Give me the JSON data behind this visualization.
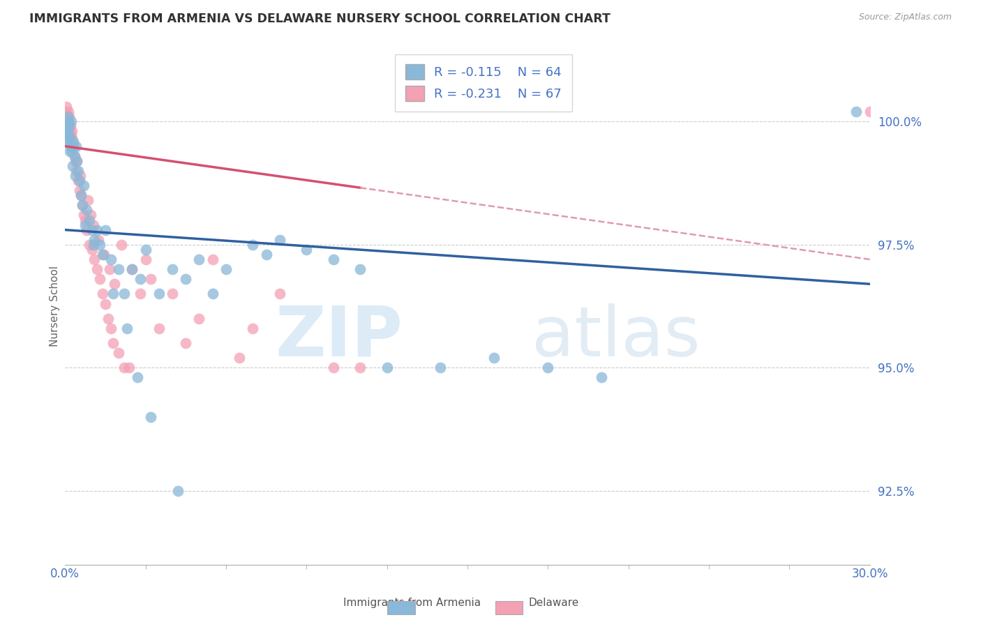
{
  "title": "IMMIGRANTS FROM ARMENIA VS DELAWARE NURSERY SCHOOL CORRELATION CHART",
  "source_text": "Source: ZipAtlas.com",
  "ylabel": "Nursery School",
  "legend_label_1": "Immigrants from Armenia",
  "legend_label_2": "Delaware",
  "R1": -0.115,
  "N1": 64,
  "R2": -0.231,
  "N2": 67,
  "color1": "#89b8d8",
  "color2": "#f4a0b5",
  "trend1_color": "#3060a0",
  "trend2_color": "#d45070",
  "dashed_color": "#e09aae",
  "x_min": 0.0,
  "x_max": 30.0,
  "y_min": 91.0,
  "y_max": 101.5,
  "yticks": [
    92.5,
    95.0,
    97.5,
    100.0
  ],
  "ytick_labels": [
    "92.5%",
    "95.0%",
    "97.5%",
    "100.0%"
  ],
  "xtick_labels": [
    "0.0%",
    "30.0%"
  ],
  "watermark_zip": "ZIP",
  "watermark_atlas": "atlas",
  "background_color": "#ffffff",
  "trend1_x0": 0.0,
  "trend1_y0": 97.8,
  "trend1_x1": 30.0,
  "trend1_y1": 96.7,
  "trend2_x0": 0.0,
  "trend2_y0": 99.5,
  "trend2_x1": 30.0,
  "trend2_y1": 97.2,
  "trend2_solid_end": 11.0,
  "scatter1_x": [
    0.05,
    0.08,
    0.1,
    0.12,
    0.15,
    0.18,
    0.2,
    0.22,
    0.25,
    0.3,
    0.35,
    0.4,
    0.45,
    0.5,
    0.55,
    0.6,
    0.7,
    0.8,
    0.9,
    1.0,
    1.1,
    1.2,
    1.3,
    1.5,
    1.7,
    2.0,
    2.2,
    2.5,
    2.8,
    3.0,
    3.5,
    4.0,
    4.5,
    5.0,
    5.5,
    6.0,
    7.0,
    7.5,
    8.0,
    9.0,
    10.0,
    11.0,
    12.0,
    14.0,
    16.0,
    18.0,
    20.0,
    29.5,
    0.06,
    0.09,
    0.11,
    0.14,
    0.17,
    0.28,
    0.38,
    0.65,
    0.75,
    1.05,
    1.4,
    1.8,
    2.3,
    2.7,
    3.2,
    4.2
  ],
  "scatter1_y": [
    99.8,
    99.6,
    100.1,
    100.0,
    99.9,
    99.7,
    99.5,
    100.0,
    99.4,
    99.6,
    99.3,
    99.5,
    99.2,
    99.0,
    98.8,
    98.5,
    98.7,
    98.2,
    98.0,
    97.8,
    97.6,
    97.8,
    97.5,
    97.8,
    97.2,
    97.0,
    96.5,
    97.0,
    96.8,
    97.4,
    96.5,
    97.0,
    96.8,
    97.2,
    96.5,
    97.0,
    97.5,
    97.3,
    97.6,
    97.4,
    97.2,
    97.0,
    95.0,
    95.0,
    95.2,
    95.0,
    94.8,
    100.2,
    99.9,
    99.8,
    99.7,
    99.6,
    99.4,
    99.1,
    98.9,
    98.3,
    97.9,
    97.5,
    97.3,
    96.5,
    95.8,
    94.8,
    94.0,
    92.5
  ],
  "scatter2_x": [
    0.04,
    0.06,
    0.08,
    0.1,
    0.12,
    0.14,
    0.16,
    0.18,
    0.2,
    0.22,
    0.25,
    0.28,
    0.3,
    0.35,
    0.38,
    0.42,
    0.5,
    0.55,
    0.6,
    0.65,
    0.7,
    0.75,
    0.8,
    0.9,
    1.0,
    1.1,
    1.2,
    1.3,
    1.4,
    1.5,
    1.6,
    1.7,
    1.8,
    2.0,
    2.2,
    2.5,
    2.8,
    3.0,
    3.5,
    4.0,
    5.0,
    5.5,
    6.5,
    7.0,
    8.0,
    10.0,
    11.0,
    0.07,
    0.09,
    0.13,
    0.15,
    0.24,
    0.32,
    0.45,
    0.58,
    0.85,
    0.95,
    1.05,
    1.25,
    1.45,
    1.65,
    1.85,
    2.1,
    2.4,
    3.2,
    4.5,
    30.0
  ],
  "scatter2_y": [
    100.2,
    100.3,
    100.1,
    100.0,
    100.2,
    99.9,
    100.1,
    99.8,
    99.9,
    99.7,
    99.8,
    99.6,
    99.5,
    99.3,
    99.2,
    99.0,
    98.8,
    98.6,
    98.5,
    98.3,
    98.1,
    98.0,
    97.8,
    97.5,
    97.4,
    97.2,
    97.0,
    96.8,
    96.5,
    96.3,
    96.0,
    95.8,
    95.5,
    95.3,
    95.0,
    97.0,
    96.5,
    97.2,
    95.8,
    96.5,
    96.0,
    97.2,
    95.2,
    95.8,
    96.5,
    95.0,
    95.0,
    100.1,
    100.0,
    99.9,
    99.8,
    99.7,
    99.5,
    99.2,
    98.9,
    98.4,
    98.1,
    97.9,
    97.6,
    97.3,
    97.0,
    96.7,
    97.5,
    95.0,
    96.8,
    95.5,
    100.2
  ]
}
